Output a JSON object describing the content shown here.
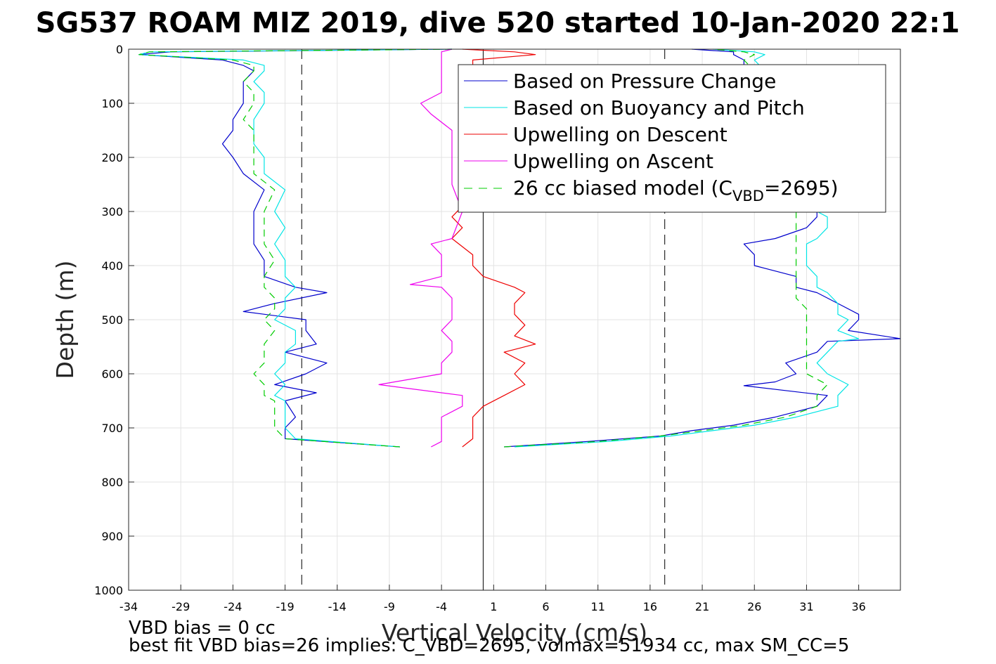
{
  "chart_data": {
    "type": "line",
    "title": "SG537 ROAM MIZ 2019, dive 520 started 10-Jan-2020 22:1",
    "xlabel": "Vertical Velocity (cm/s)",
    "ylabel": "Depth (m)",
    "xlim": [
      -34,
      40
    ],
    "ylim": [
      0,
      1000
    ],
    "y_reversed": true,
    "grid": true,
    "x_ticks": [
      "-34",
      "-29",
      "-24",
      "-19",
      "-14",
      "-9",
      "-4",
      "1",
      "6",
      "11",
      "16",
      "21",
      "26",
      "31",
      "36"
    ],
    "x_tick_values": [
      -34,
      -29,
      -24,
      -19,
      -14,
      -9,
      -4,
      1,
      6,
      11,
      16,
      21,
      26,
      31,
      36
    ],
    "y_ticks": [
      "0",
      "100",
      "200",
      "300",
      "400",
      "500",
      "600",
      "700",
      "800",
      "900",
      "1000"
    ],
    "y_tick_values": [
      0,
      100,
      200,
      300,
      400,
      500,
      600,
      700,
      800,
      900,
      1000
    ],
    "vertical_lines": [
      {
        "x": -17.4,
        "style": "dashed"
      },
      {
        "x": 0,
        "style": "solid"
      },
      {
        "x": 17.4,
        "style": "dashed"
      }
    ],
    "legend_position": "top-right",
    "legend": [
      {
        "label": "Based on Pressure Change",
        "color": "#0000cc",
        "style": "solid"
      },
      {
        "label": "Based on Buoyancy and Pitch",
        "color": "#00e5e5",
        "style": "solid"
      },
      {
        "label": "Upwelling on Descent",
        "color": "#ee0000",
        "style": "solid"
      },
      {
        "label": "Upwelling on Ascent",
        "color": "#ee00ee",
        "style": "solid"
      },
      {
        "label_main": "26 cc biased model (C",
        "label_sub": "VBD",
        "label_tail": "=2695)",
        "color": "#00cc00",
        "style": "dashed"
      }
    ],
    "series": [
      {
        "name": "Based on Pressure Change",
        "color": "#0000cc",
        "descent": {
          "depth": [
            0,
            5,
            10,
            20,
            30,
            40,
            60,
            80,
            100,
            130,
            150,
            175,
            200,
            230,
            260,
            300,
            330,
            360,
            390,
            420,
            440,
            450,
            470,
            485,
            500,
            520,
            545,
            560,
            580,
            600,
            620,
            635,
            650,
            680,
            700,
            720,
            735
          ],
          "velocity": [
            -3,
            -30,
            -33,
            -25,
            -23,
            -22,
            -23,
            -23,
            -23,
            -24,
            -24,
            -25,
            -24,
            -23,
            -21,
            -22,
            -22,
            -22,
            -21,
            -21,
            -18,
            -15,
            -20,
            -23,
            -17,
            -17,
            -16,
            -19,
            -15,
            -17,
            -20,
            -16,
            -19,
            -18,
            -19,
            -19,
            -8
          ]
        },
        "ascent": {
          "depth": [
            735,
            725,
            715,
            705,
            695,
            680,
            660,
            640,
            622,
            615,
            600,
            580,
            560,
            540,
            535,
            520,
            500,
            490,
            470,
            450,
            440,
            420,
            400,
            380,
            360,
            350,
            330,
            310,
            300,
            280,
            250,
            200,
            150,
            100,
            60,
            40,
            20,
            10,
            5,
            0
          ],
          "velocity": [
            2,
            10,
            17,
            20,
            24,
            28,
            32,
            33,
            25,
            28,
            30,
            29,
            32,
            33,
            40,
            35,
            36,
            36,
            34,
            32,
            30,
            30,
            26,
            26,
            25,
            28,
            31,
            32,
            32,
            31,
            30,
            29,
            29,
            28,
            26,
            25,
            25,
            24,
            24,
            20
          ]
        }
      },
      {
        "name": "Based on Buoyancy and Pitch",
        "color": "#00e5e5",
        "descent": {
          "depth": [
            0,
            5,
            10,
            20,
            30,
            40,
            60,
            80,
            100,
            130,
            150,
            175,
            200,
            230,
            260,
            300,
            330,
            360,
            390,
            420,
            440,
            460,
            480,
            500,
            520,
            545,
            560,
            580,
            600,
            620,
            640,
            650,
            680,
            700,
            720,
            735
          ],
          "velocity": [
            -3,
            -32,
            -33,
            -23,
            -21,
            -21,
            -22,
            -21,
            -21,
            -22,
            -22,
            -22,
            -21,
            -21,
            -19,
            -20,
            -19,
            -20,
            -19,
            -19,
            -18,
            -19,
            -19,
            -20,
            -18,
            -18,
            -19,
            -19,
            -20,
            -19,
            -20,
            -19,
            -19,
            -19,
            -18,
            -8
          ]
        },
        "ascent": {
          "depth": [
            735,
            725,
            715,
            705,
            695,
            680,
            660,
            640,
            620,
            600,
            580,
            560,
            540,
            535,
            520,
            500,
            490,
            470,
            450,
            440,
            420,
            400,
            380,
            360,
            350,
            330,
            310,
            300,
            280,
            250,
            200,
            150,
            100,
            60,
            40,
            20,
            10,
            5,
            0
          ],
          "velocity": [
            3,
            12,
            18,
            22,
            26,
            30,
            34,
            34,
            35,
            33,
            32,
            33,
            34,
            36,
            34,
            35,
            34,
            34,
            33,
            32,
            32,
            31,
            31,
            31,
            32,
            33,
            33,
            32,
            32,
            31,
            31,
            30,
            30,
            28,
            27,
            26,
            27,
            26,
            22
          ]
        }
      },
      {
        "name": "Upwelling on Descent",
        "color": "#ee0000",
        "descent": {
          "depth": [
            0,
            5,
            10,
            20,
            40,
            60,
            100,
            150,
            200,
            250,
            290,
            310,
            330,
            350,
            380,
            400,
            420,
            440,
            450,
            470,
            490,
            510,
            530,
            545,
            560,
            580,
            600,
            620,
            640,
            660,
            680,
            700,
            720,
            735
          ],
          "velocity": [
            -2,
            3,
            5,
            -1,
            -1,
            -2,
            -2,
            -2,
            -2,
            -2,
            -2,
            -3,
            -2,
            -3,
            -1,
            -1,
            0,
            3,
            4,
            3,
            3,
            4,
            3,
            5,
            2,
            4,
            3,
            4,
            2,
            0,
            -1,
            -1,
            -1,
            -2
          ]
        }
      },
      {
        "name": "Upwelling on Ascent",
        "color": "#ee00ee",
        "ascent": {
          "depth": [
            735,
            725,
            700,
            680,
            660,
            640,
            620,
            600,
            580,
            560,
            540,
            520,
            500,
            480,
            460,
            440,
            435,
            420,
            400,
            380,
            360,
            350,
            300,
            250,
            200,
            150,
            120,
            100,
            80,
            60,
            40,
            20,
            10,
            5,
            0
          ],
          "velocity": [
            -5,
            -4,
            -4,
            -4,
            -2,
            -2,
            -10,
            -4,
            -4,
            -3,
            -3,
            -4,
            -3,
            -3,
            -3,
            -4,
            -7,
            -4,
            -4,
            -4,
            -5,
            -3,
            -2,
            -3,
            -3,
            -3,
            -5,
            -6,
            -4,
            -4,
            -4,
            -4,
            -4,
            -4,
            -3
          ]
        }
      },
      {
        "name": "26 cc biased model (CVBD=2695)",
        "color": "#00cc00",
        "dashed": true,
        "descent": {
          "depth": [
            0,
            5,
            10,
            20,
            30,
            40,
            60,
            80,
            100,
            130,
            150,
            175,
            200,
            230,
            260,
            300,
            330,
            360,
            390,
            420,
            440,
            460,
            480,
            500,
            520,
            545,
            560,
            580,
            600,
            620,
            640,
            650,
            680,
            700,
            720,
            735
          ],
          "velocity": [
            -3,
            -32,
            -33,
            -24,
            -22,
            -22,
            -23,
            -22,
            -22,
            -23,
            -22,
            -22,
            -22,
            -22,
            -20,
            -21,
            -21,
            -21,
            -20,
            -21,
            -21,
            -20,
            -20,
            -21,
            -20,
            -21,
            -21,
            -21,
            -22,
            -21,
            -21,
            -20,
            -20,
            -20,
            -19,
            -8
          ]
        },
        "ascent": {
          "depth": [
            735,
            725,
            715,
            705,
            695,
            680,
            660,
            640,
            620,
            600,
            580,
            560,
            540,
            520,
            500,
            480,
            460,
            440,
            420,
            400,
            380,
            360,
            340,
            320,
            300,
            250,
            200,
            150,
            100,
            60,
            40,
            20,
            10,
            5,
            0
          ],
          "velocity": [
            2,
            11,
            17,
            21,
            25,
            29,
            32,
            32,
            33,
            31,
            31,
            31,
            31,
            31,
            31,
            31,
            30,
            30,
            30,
            30,
            30,
            30,
            30,
            30,
            30,
            29,
            29,
            28,
            28,
            27,
            26,
            25,
            26,
            25,
            22
          ]
        }
      }
    ]
  },
  "notes": {
    "line1": "VBD bias = 0 cc",
    "line2": "best fit VBD bias=26 implies: C_VBD=2695, volmax=51934 cc, max SM_CC=5"
  }
}
